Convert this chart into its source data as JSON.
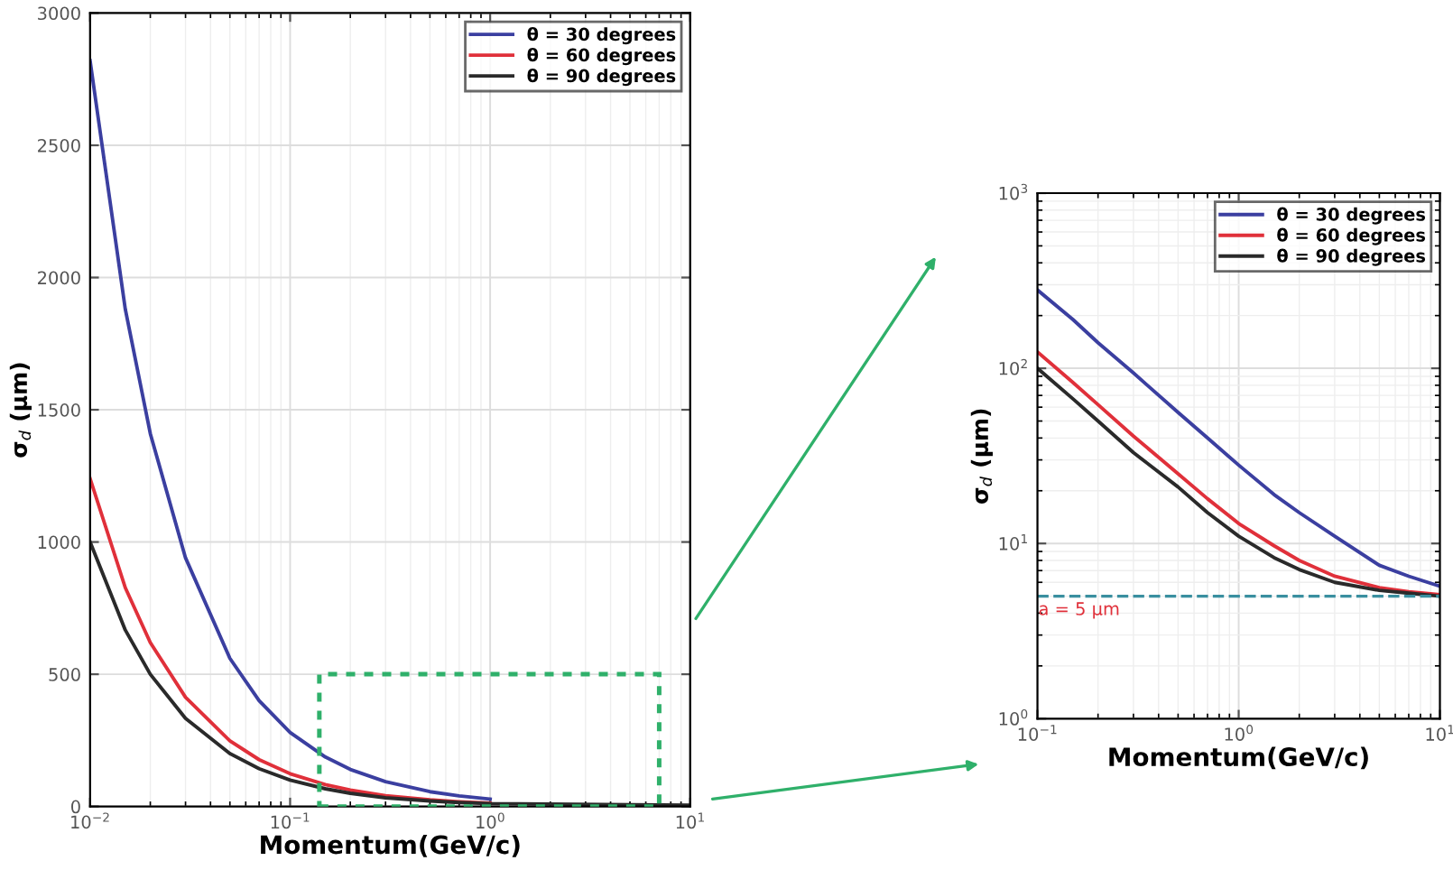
{
  "chart_data": [
    {
      "type": "line",
      "xlabel": "Momentum(GeV/c)",
      "ylabel": "σ$_{d}$ (μm)",
      "log": "x",
      "xlim": [
        0.01,
        10
      ],
      "ylim": [
        0,
        3000
      ],
      "xticks": [
        {
          "value": 0.01,
          "label": "10$^{−2}$"
        },
        {
          "value": 0.1,
          "label": "10$^{−1}$"
        },
        {
          "value": 1,
          "label": "10$^{0}$"
        },
        {
          "value": 10,
          "label": "10$^{1}$"
        }
      ],
      "yticks": [
        0,
        500,
        1000,
        1500,
        2000,
        2500,
        3000
      ],
      "grid": true,
      "legend": "top right",
      "line_style": "solid",
      "marker": "none",
      "x": [
        0.01,
        0.015,
        0.02,
        0.03,
        0.05,
        0.07,
        0.1,
        0.15,
        0.2,
        0.3,
        0.5,
        0.7,
        1,
        10
      ],
      "series": [
        {
          "name": "θ = 30 degrees",
          "color": "#3b3fa0",
          "values": [
            2820,
            1880,
            1410,
            940,
            560,
            400,
            280,
            187,
            140,
            94,
            56,
            40,
            28,
            null
          ]
        },
        {
          "name": "θ = 60 degrees",
          "color": "#e0303a",
          "values": [
            1240,
            827,
            620,
            413,
            248,
            177,
            124,
            83,
            62,
            41,
            25,
            18,
            13,
            null
          ]
        },
        {
          "name": "θ = 90 degrees",
          "color": "#2a2a2a",
          "values": [
            1000,
            667,
            500,
            333,
            200,
            143,
            100,
            67,
            50,
            33,
            21,
            15,
            11,
            5
          ]
        }
      ]
    },
    {
      "type": "line",
      "xlabel": "Momentum(GeV/c)",
      "ylabel": "σ$_{d}$ (μm)",
      "log": "xy",
      "xlim": [
        0.1,
        10
      ],
      "ylim": [
        1,
        1000
      ],
      "xticks": [
        {
          "value": 0.1,
          "label": "10$^{−1}$"
        },
        {
          "value": 1,
          "label": "10$^{0}$"
        },
        {
          "value": 10,
          "label": "10$^{1}$"
        }
      ],
      "yticks": [
        {
          "value": 1,
          "label": "10$^{0}$"
        },
        {
          "value": 10,
          "label": "10$^{1}$"
        },
        {
          "value": 100,
          "label": "10$^{2}$"
        },
        {
          "value": 1000,
          "label": "10$^{3}$"
        }
      ],
      "grid": true,
      "legend": "top right",
      "line_style": "solid",
      "marker": "none",
      "x": [
        0.1,
        0.15,
        0.2,
        0.3,
        0.5,
        0.7,
        1,
        1.5,
        2,
        3,
        5,
        7,
        10
      ],
      "series": [
        {
          "name": "θ = 30 degrees",
          "color": "#3b3fa0",
          "values": [
            280,
            190,
            140,
            94,
            56,
            40,
            28,
            19,
            15,
            11,
            7.5,
            6.5,
            5.7
          ]
        },
        {
          "name": "θ = 60 degrees",
          "color": "#e0303a",
          "values": [
            124,
            83,
            62,
            41,
            25,
            18,
            13,
            9.7,
            8,
            6.5,
            5.6,
            5.3,
            5.1
          ]
        },
        {
          "name": "θ = 90 degrees",
          "color": "#2a2a2a",
          "values": [
            100,
            67,
            50,
            33,
            21,
            15,
            11,
            8.3,
            7.1,
            6,
            5.4,
            5.2,
            5
          ]
        }
      ],
      "ref_lines": [
        {
          "axis": "y",
          "value": 5,
          "label": "a = 5 μm",
          "color": "#3a8fa0",
          "line_style": "dashed"
        }
      ]
    }
  ]
}
